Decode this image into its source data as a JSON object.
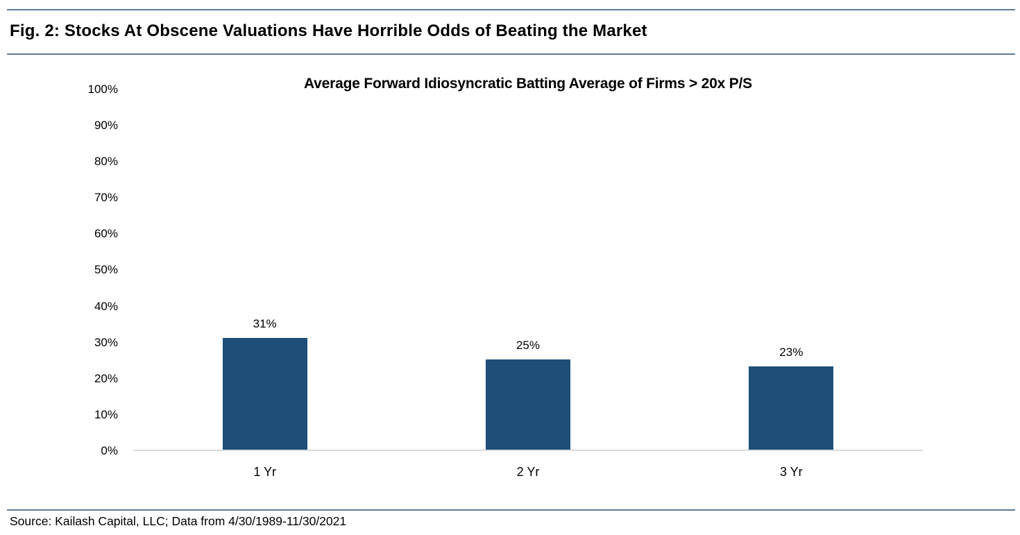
{
  "figure": {
    "title": "Fig. 2: Stocks At Obscene Valuations Have Horrible Odds of Beating the Market",
    "source": "Source: Kailash Capital, LLC; Data from 4/30/1989-11/30/2021"
  },
  "chart_data": {
    "type": "bar",
    "title": "Average Forward Idiosyncratic Batting Average of Firms > 20x P/S",
    "categories": [
      "1 Yr",
      "2 Yr",
      "3 Yr"
    ],
    "values": [
      31,
      25,
      23
    ],
    "data_labels": [
      "31%",
      "25%",
      "23%"
    ],
    "xlabel": "",
    "ylabel": "",
    "ylim": [
      0,
      100
    ],
    "ytick_interval": 10,
    "ytick_labels": [
      "100%",
      "90%",
      "80%",
      "70%",
      "60%",
      "50%",
      "40%",
      "30%",
      "20%",
      "10%",
      "0%"
    ],
    "grid": false,
    "legend": false
  },
  "colors": {
    "bar_fill": "#1F4E79",
    "rule": "#5B7B9C",
    "axis_line": "#D9D9D9",
    "text": "#000000",
    "background": "#FFFFFF"
  }
}
